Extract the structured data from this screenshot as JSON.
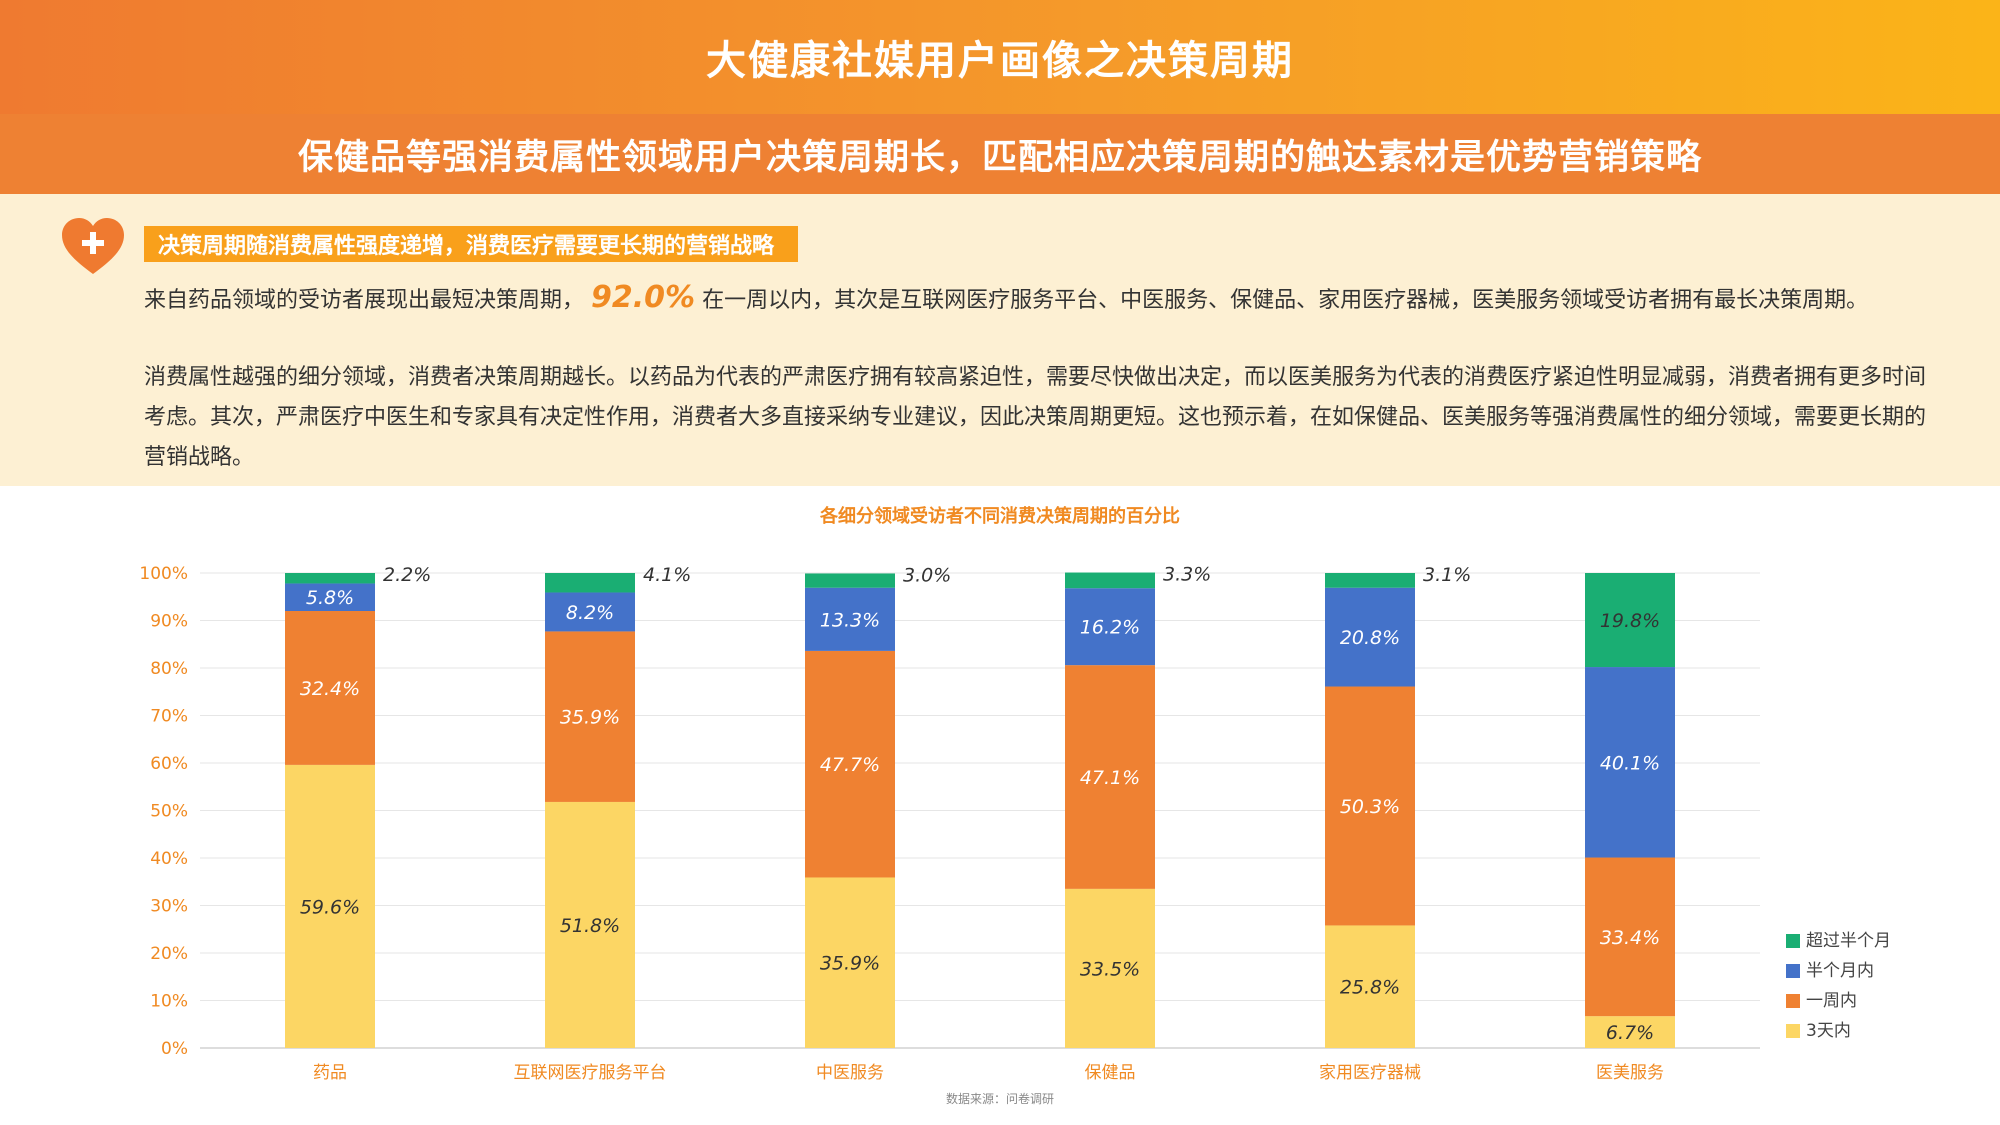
{
  "header": {
    "title": "大健康社媒用户画像之决策周期",
    "subtitle": "保健品等强消费属性领域用户决策周期长，匹配相应决策周期的触达素材是优势营销策略"
  },
  "intro": {
    "tag": "决策周期随消费属性强度递增，消费医疗需要更长期的营销战略",
    "p1_before": "来自药品领域的受访者展现出最短决策周期，",
    "p1_highlight": "92.0%",
    "p1_after": "在一周以内，其次是互联网医疗服务平台、中医服务、保健品、家用医疗器械，医美服务领域受访者拥有最长决策周期。",
    "p2": "消费属性越强的细分领域，消费者决策周期越长。以药品为代表的严肃医疗拥有较高紧迫性，需要尽快做出决定，而以医美服务为代表的消费医疗紧迫性明显减弱，消费者拥有更多时间考虑。其次，严肃医疗中医生和专家具有决定性作用，消费者大多直接采纳专业建议，因此决策周期更短。这也预示着，在如保健品、医美服务等强消费属性的细分领域，需要更长期的营销战略。"
  },
  "source": "数据来源：问卷调研",
  "colors": {
    "s3d": "#fcd664",
    "s1w": "#ef8132",
    "shm": "#4472c9",
    "sgt": "#1aae73",
    "title": "#f08a22",
    "axis": "#666666"
  },
  "chart_data": {
    "type": "bar",
    "stacked": true,
    "title": "各细分领域受访者不同消费决策周期的百分比",
    "categories": [
      "药品",
      "互联网医疗服务平台",
      "中医服务",
      "保健品",
      "家用医疗器械",
      "医美服务"
    ],
    "ylim": [
      0,
      100
    ],
    "yticks": [
      "0%",
      "10%",
      "20%",
      "30%",
      "40%",
      "50%",
      "60%",
      "70%",
      "80%",
      "90%",
      "100%"
    ],
    "series": [
      {
        "name": "3天内",
        "values": [
          59.6,
          51.8,
          35.9,
          33.5,
          25.8,
          6.7
        ],
        "labels": [
          "59.6%",
          "51.8%",
          "35.9%",
          "33.5%",
          "25.8%",
          "6.7%"
        ]
      },
      {
        "name": "一周内",
        "values": [
          32.4,
          35.9,
          47.7,
          47.1,
          50.3,
          33.4
        ],
        "labels": [
          "32.4%",
          "35.9%",
          "47.7%",
          "47.1%",
          "50.3%",
          "33.4%"
        ]
      },
      {
        "name": "半个月内",
        "values": [
          5.8,
          8.2,
          13.3,
          16.2,
          20.8,
          40.1
        ],
        "labels": [
          "5.8%",
          "8.2%",
          "13.3%",
          "16.2%",
          "20.8%",
          "40.1%"
        ]
      },
      {
        "name": "超过半个月",
        "values": [
          2.2,
          4.1,
          3.0,
          3.3,
          3.1,
          19.8
        ],
        "labels": [
          "2.2%",
          "4.1%",
          "3.0%",
          "3.3%",
          "3.1%",
          "19.8%"
        ]
      }
    ],
    "legend": [
      "超过半个月",
      "半个月内",
      "一周内",
      "3天内"
    ],
    "legend_position": "bottom-right"
  }
}
